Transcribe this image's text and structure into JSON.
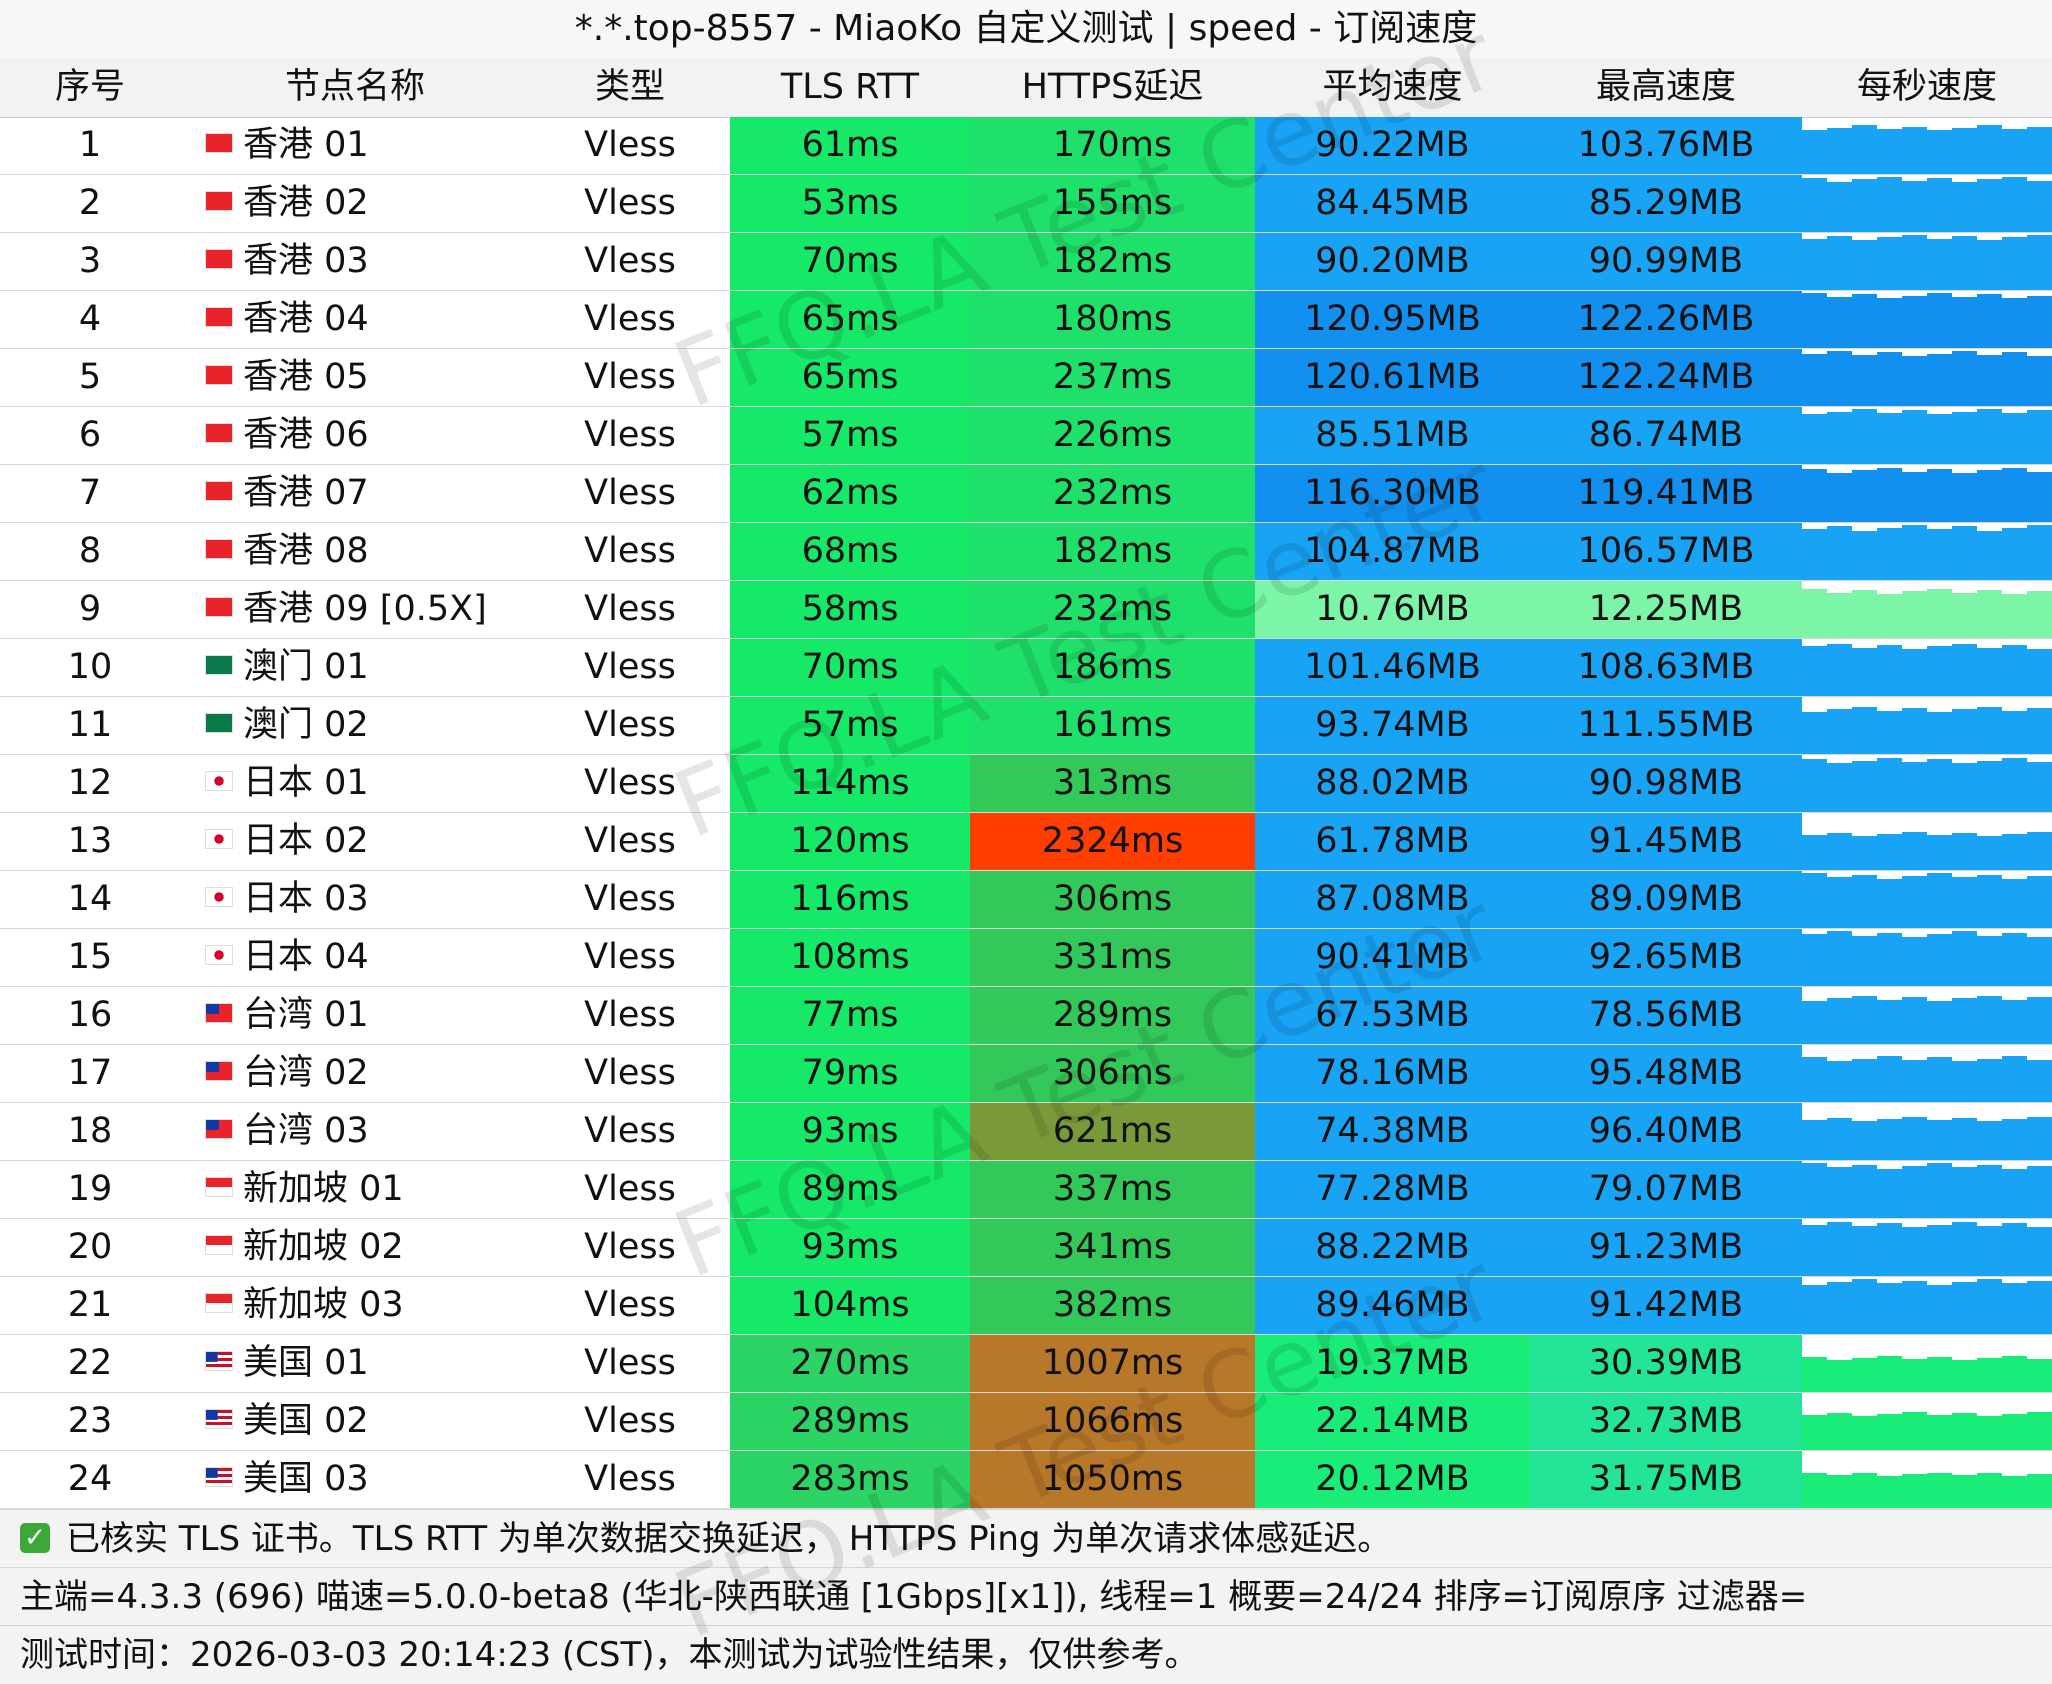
{
  "title": "*.*.top-8557 - MiaoKo 自定义测试 | speed - 订阅速度",
  "headers": [
    "序号",
    "节点名称",
    "类型",
    "TLS RTT",
    "HTTPS延迟",
    "平均速度",
    "最高速度",
    "每秒速度"
  ],
  "rows": [
    {
      "no": "1",
      "name": "香港 01",
      "flag": "hk-flag-icon",
      "type": "Vless",
      "tls": "61ms",
      "https": "170ms",
      "avg": "90.22MB",
      "max": "103.76MB"
    },
    {
      "no": "2",
      "name": "香港 02",
      "flag": "hk-flag-icon",
      "type": "Vless",
      "tls": "53ms",
      "https": "155ms",
      "avg": "84.45MB",
      "max": "85.29MB"
    },
    {
      "no": "3",
      "name": "香港 03",
      "flag": "hk-flag-icon",
      "type": "Vless",
      "tls": "70ms",
      "https": "182ms",
      "avg": "90.20MB",
      "max": "90.99MB"
    },
    {
      "no": "4",
      "name": "香港 04",
      "flag": "hk-flag-icon",
      "type": "Vless",
      "tls": "65ms",
      "https": "180ms",
      "avg": "120.95MB",
      "max": "122.26MB"
    },
    {
      "no": "5",
      "name": "香港 05",
      "flag": "hk-flag-icon",
      "type": "Vless",
      "tls": "65ms",
      "https": "237ms",
      "avg": "120.61MB",
      "max": "122.24MB"
    },
    {
      "no": "6",
      "name": "香港 06",
      "flag": "hk-flag-icon",
      "type": "Vless",
      "tls": "57ms",
      "https": "226ms",
      "avg": "85.51MB",
      "max": "86.74MB"
    },
    {
      "no": "7",
      "name": "香港 07",
      "flag": "hk-flag-icon",
      "type": "Vless",
      "tls": "62ms",
      "https": "232ms",
      "avg": "116.30MB",
      "max": "119.41MB"
    },
    {
      "no": "8",
      "name": "香港 08",
      "flag": "hk-flag-icon",
      "type": "Vless",
      "tls": "68ms",
      "https": "182ms",
      "avg": "104.87MB",
      "max": "106.57MB"
    },
    {
      "no": "9",
      "name": "香港 09 [0.5X]",
      "flag": "hk-flag-icon",
      "type": "Vless",
      "tls": "58ms",
      "https": "232ms",
      "avg": "10.76MB",
      "max": "12.25MB"
    },
    {
      "no": "10",
      "name": "澳门 01",
      "flag": "mo-flag-icon",
      "type": "Vless",
      "tls": "70ms",
      "https": "186ms",
      "avg": "101.46MB",
      "max": "108.63MB"
    },
    {
      "no": "11",
      "name": "澳门 02",
      "flag": "mo-flag-icon",
      "type": "Vless",
      "tls": "57ms",
      "https": "161ms",
      "avg": "93.74MB",
      "max": "111.55MB"
    },
    {
      "no": "12",
      "name": "日本 01",
      "flag": "jp-flag-icon",
      "type": "Vless",
      "tls": "114ms",
      "https": "313ms",
      "avg": "88.02MB",
      "max": "90.98MB"
    },
    {
      "no": "13",
      "name": "日本 02",
      "flag": "jp-flag-icon",
      "type": "Vless",
      "tls": "120ms",
      "https": "2324ms",
      "avg": "61.78MB",
      "max": "91.45MB"
    },
    {
      "no": "14",
      "name": "日本 03",
      "flag": "jp-flag-icon",
      "type": "Vless",
      "tls": "116ms",
      "https": "306ms",
      "avg": "87.08MB",
      "max": "89.09MB"
    },
    {
      "no": "15",
      "name": "日本 04",
      "flag": "jp-flag-icon",
      "type": "Vless",
      "tls": "108ms",
      "https": "331ms",
      "avg": "90.41MB",
      "max": "92.65MB"
    },
    {
      "no": "16",
      "name": "台湾 01",
      "flag": "tw-flag-icon",
      "type": "Vless",
      "tls": "77ms",
      "https": "289ms",
      "avg": "67.53MB",
      "max": "78.56MB"
    },
    {
      "no": "17",
      "name": "台湾 02",
      "flag": "tw-flag-icon",
      "type": "Vless",
      "tls": "79ms",
      "https": "306ms",
      "avg": "78.16MB",
      "max": "95.48MB"
    },
    {
      "no": "18",
      "name": "台湾 03",
      "flag": "tw-flag-icon",
      "type": "Vless",
      "tls": "93ms",
      "https": "621ms",
      "avg": "74.38MB",
      "max": "96.40MB"
    },
    {
      "no": "19",
      "name": "新加坡 01",
      "flag": "sg-flag-icon",
      "type": "Vless",
      "tls": "89ms",
      "https": "337ms",
      "avg": "77.28MB",
      "max": "79.07MB"
    },
    {
      "no": "20",
      "name": "新加坡 02",
      "flag": "sg-flag-icon",
      "type": "Vless",
      "tls": "93ms",
      "https": "341ms",
      "avg": "88.22MB",
      "max": "91.23MB"
    },
    {
      "no": "21",
      "name": "新加坡 03",
      "flag": "sg-flag-icon",
      "type": "Vless",
      "tls": "104ms",
      "https": "382ms",
      "avg": "89.46MB",
      "max": "91.42MB"
    },
    {
      "no": "22",
      "name": "美国 01",
      "flag": "us-flag-icon",
      "type": "Vless",
      "tls": "270ms",
      "https": "1007ms",
      "avg": "19.37MB",
      "max": "30.39MB"
    },
    {
      "no": "23",
      "name": "美国 02",
      "flag": "us-flag-icon",
      "type": "Vless",
      "tls": "289ms",
      "https": "1066ms",
      "avg": "22.14MB",
      "max": "32.73MB"
    },
    {
      "no": "24",
      "name": "美国 03",
      "flag": "us-flag-icon",
      "type": "Vless",
      "tls": "283ms",
      "https": "1050ms",
      "avg": "20.12MB",
      "max": "31.75MB"
    }
  ],
  "footer": {
    "line1": "已核实 TLS 证书。TLS RTT 为单次数据交换延迟， HTTPS Ping 为单次请求体感延迟。",
    "line2": "主端=4.3.3 (696) 喵速=5.0.0-beta8 (华北-陕西联通 [1Gbps][x1]), 线程=1 概要=24/24 排序=订阅原序 过滤器=",
    "line3": "测试时间：2026-03-03 20:14:23 (CST)，本测试为试验性结果，仅供参考。"
  },
  "watermark": "FFQ.LA Test Center",
  "colors": {
    "tls_good": "#16e868",
    "tls_mid": "#2cd465",
    "https_good": "#1fe06a",
    "https_mid": "#33c95a",
    "https_warn": "#7a9a3a",
    "https_bad": "#b8782a",
    "https_worst": "#ff3f00",
    "speed_blue": "#19a3f5",
    "speed_blue_dark": "#1290f0",
    "speed_green_light": "#7cf5a8",
    "speed_green": "#19ec78",
    "speed_teal": "#22e598"
  }
}
